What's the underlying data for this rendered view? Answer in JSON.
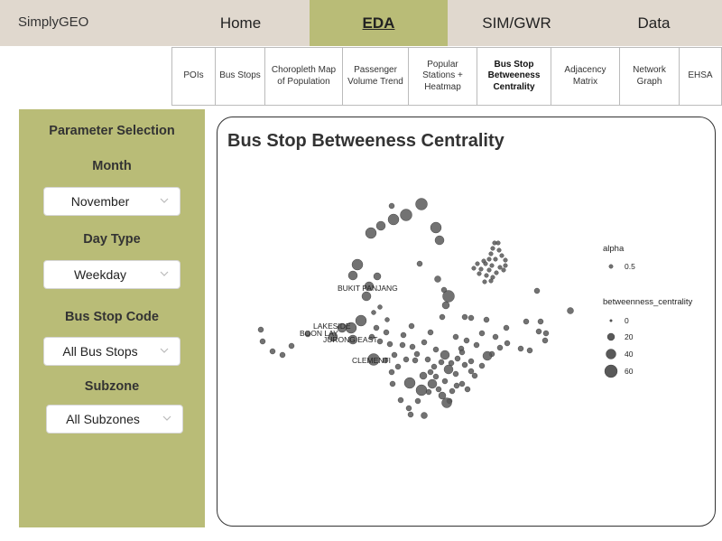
{
  "app": {
    "title": "SimplyGEO"
  },
  "nav": {
    "tabs": [
      {
        "label": "Home",
        "active": false
      },
      {
        "label": "EDA",
        "active": true
      },
      {
        "label": "SIM/GWR",
        "active": false
      },
      {
        "label": "Data",
        "active": false
      }
    ]
  },
  "subnav": {
    "tabs": [
      {
        "label": "POIs",
        "active": false
      },
      {
        "label": "Bus Stops",
        "active": false
      },
      {
        "label": "Choropleth Map of Population",
        "active": false
      },
      {
        "label": "Passenger Volume Trend",
        "active": false
      },
      {
        "label": "Popular Stations + Heatmap",
        "active": false
      },
      {
        "label": "Bus Stop Betweeness Centrality",
        "active": true
      },
      {
        "label": "Adjacency Matrix",
        "active": false
      },
      {
        "label": "Network Graph",
        "active": false
      },
      {
        "label": "EHSA",
        "active": false
      }
    ]
  },
  "sidebar": {
    "title": "Parameter Selection",
    "month": {
      "label": "Month",
      "value": "November"
    },
    "day_type": {
      "label": "Day Type",
      "value": "Weekday"
    },
    "bus_stop_code": {
      "label": "Bus Stop Code",
      "value": "All Bus Stops"
    },
    "subzone": {
      "label": "Subzone",
      "value": "All Subzones"
    }
  },
  "panel": {
    "title": "Bus Stop Betweeness Centrality"
  },
  "colors": {
    "accent": "#b9bc77",
    "topbar": "#e0d8ce",
    "point": "#595959"
  },
  "chart_data": {
    "type": "scatter",
    "title": "Bus Stop Betweeness Centrality",
    "xlabel": "",
    "ylabel": "",
    "size_variable": "betweenness_centrality",
    "labels": [
      "BUKIT PANJANG",
      "LAKESIDE",
      "BOON LAY",
      "JURONG EAST",
      "CLEMENTI"
    ],
    "legend": {
      "alpha_title": "alpha",
      "alpha_value": "0.5",
      "size_title": "betweenness_centrality",
      "size_values": [
        "0",
        "20",
        "40",
        "60"
      ]
    },
    "legend_position": "right",
    "grid": false
  }
}
